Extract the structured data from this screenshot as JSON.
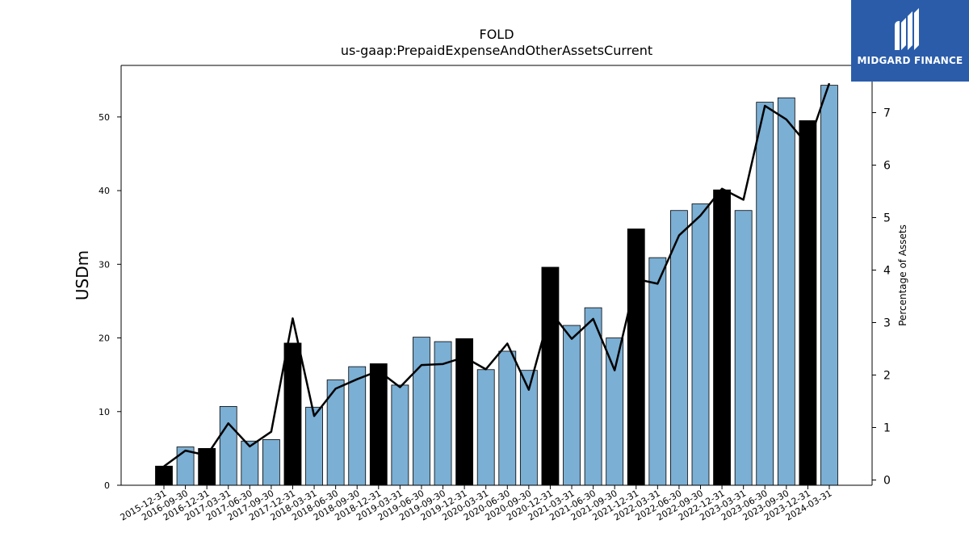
{
  "chart_data": {
    "type": "bar",
    "title": "FOLD",
    "subtitle": "us-gaap:PrepaidExpenseAndOtherAssetsCurrent",
    "ylabel": "USDm",
    "y2label": "Percentage of Assets",
    "ylim": [
      0,
      57
    ],
    "y2lim": [
      -0.1,
      7.9
    ],
    "yticks": [
      0,
      10,
      20,
      30,
      40,
      50
    ],
    "y2ticks": [
      0,
      1,
      2,
      3,
      4,
      5,
      6,
      7
    ],
    "grid": false,
    "colors": {
      "bar": "#7bafd4",
      "bar_q4": "#000000",
      "line": "#000000"
    },
    "categories": [
      "2015-12-31",
      "2016-09-30",
      "2016-12-31",
      "2017-03-31",
      "2017-06-30",
      "2017-09-30",
      "2017-12-31",
      "2018-03-31",
      "2018-06-30",
      "2018-09-30",
      "2018-12-31",
      "2019-03-31",
      "2019-06-30",
      "2019-09-30",
      "2019-12-31",
      "2020-03-31",
      "2020-06-30",
      "2020-09-30",
      "2020-12-31",
      "2021-03-31",
      "2021-06-30",
      "2021-09-30",
      "2021-12-31",
      "2022-03-31",
      "2022-06-30",
      "2022-09-30",
      "2022-12-31",
      "2023-03-31",
      "2023-06-30",
      "2023-09-30",
      "2023-12-31",
      "2024-03-31"
    ],
    "values": [
      2.6,
      5.2,
      5.0,
      10.7,
      6.0,
      6.2,
      19.3,
      10.6,
      14.3,
      16.1,
      16.5,
      13.6,
      20.1,
      19.5,
      19.9,
      15.7,
      18.2,
      15.6,
      29.6,
      21.7,
      24.1,
      20.0,
      34.8,
      30.9,
      37.3,
      38.2,
      40.1,
      37.3,
      52.0,
      52.6,
      49.5,
      54.3
    ],
    "highlight": [
      true,
      false,
      true,
      false,
      false,
      false,
      true,
      false,
      false,
      false,
      true,
      false,
      false,
      false,
      true,
      false,
      false,
      false,
      true,
      false,
      false,
      false,
      true,
      false,
      false,
      false,
      true,
      false,
      false,
      false,
      true,
      false
    ],
    "pct_of_assets": [
      0.26,
      0.56,
      0.47,
      1.08,
      0.64,
      0.92,
      3.08,
      1.22,
      1.74,
      1.92,
      2.08,
      1.77,
      2.19,
      2.21,
      2.34,
      2.11,
      2.6,
      1.72,
      3.21,
      2.69,
      3.07,
      2.09,
      3.83,
      3.74,
      4.66,
      5.04,
      5.55,
      5.34,
      7.13,
      6.87,
      6.38,
      7.56
    ]
  },
  "logo": {
    "text": "MIDGARD FINANCE"
  }
}
